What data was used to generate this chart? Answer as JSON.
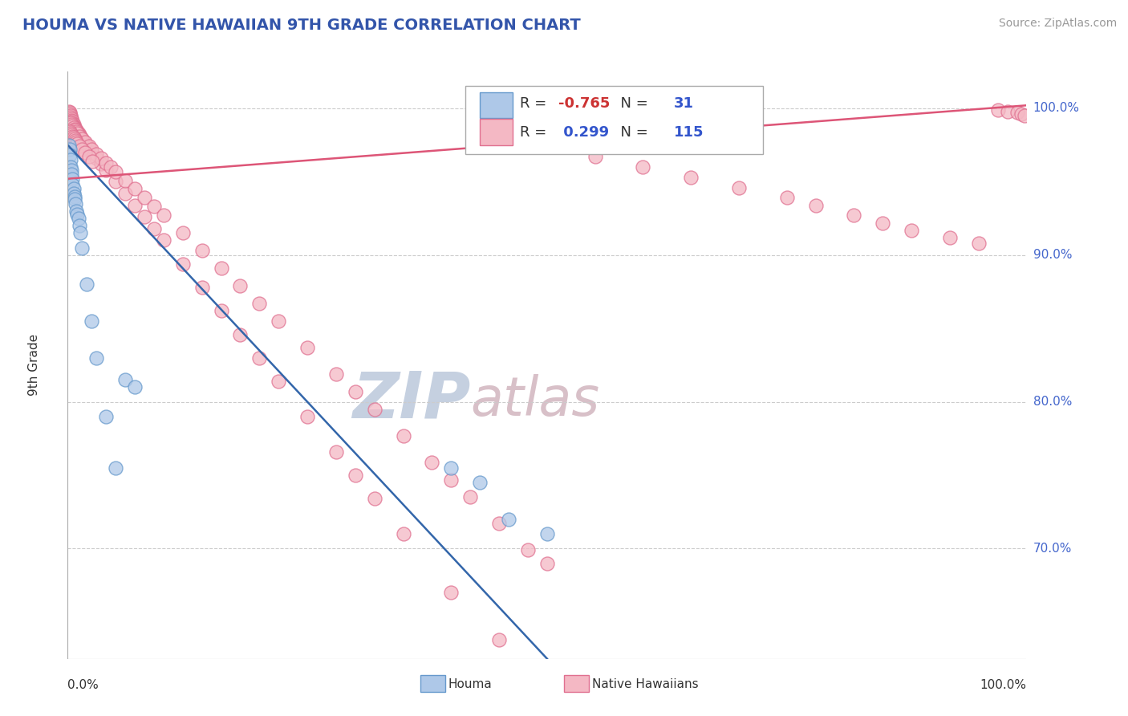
{
  "title": "HOUMA VS NATIVE HAWAIIAN 9TH GRADE CORRELATION CHART",
  "source": "Source: ZipAtlas.com",
  "ylabel": "9th Grade",
  "ylabel_right_ticks": [
    "70.0%",
    "80.0%",
    "90.0%",
    "100.0%"
  ],
  "ylabel_right_values": [
    0.7,
    0.8,
    0.9,
    1.0
  ],
  "xmin": 0.0,
  "xmax": 1.0,
  "ymin": 0.625,
  "ymax": 1.025,
  "houma_R": -0.765,
  "houma_N": 31,
  "native_R": 0.299,
  "native_N": 115,
  "houma_color": "#aec8e8",
  "houma_edge_color": "#6699cc",
  "native_color": "#f4b8c4",
  "native_edge_color": "#e07090",
  "houma_line_color": "#3366aa",
  "native_line_color": "#dd5577",
  "background_color": "#ffffff",
  "title_color": "#3355aa",
  "source_color": "#999999",
  "watermark_zip_color": "#c8d4e8",
  "watermark_atlas_color": "#d8c8c8",
  "grid_color": "#cccccc",
  "houma_x": [
    0.001,
    0.002,
    0.002,
    0.003,
    0.003,
    0.004,
    0.004,
    0.005,
    0.005,
    0.006,
    0.006,
    0.007,
    0.007,
    0.008,
    0.009,
    0.01,
    0.011,
    0.012,
    0.013,
    0.015,
    0.02,
    0.025,
    0.03,
    0.04,
    0.05,
    0.06,
    0.07,
    0.4,
    0.43,
    0.46,
    0.5
  ],
  "houma_y": [
    0.975,
    0.972,
    0.968,
    0.965,
    0.96,
    0.958,
    0.955,
    0.952,
    0.948,
    0.945,
    0.942,
    0.94,
    0.938,
    0.935,
    0.93,
    0.928,
    0.925,
    0.92,
    0.915,
    0.905,
    0.88,
    0.855,
    0.83,
    0.79,
    0.755,
    0.815,
    0.81,
    0.755,
    0.745,
    0.72,
    0.71
  ],
  "native_x": [
    0.001,
    0.002,
    0.002,
    0.003,
    0.003,
    0.004,
    0.004,
    0.005,
    0.005,
    0.006,
    0.006,
    0.007,
    0.008,
    0.009,
    0.01,
    0.011,
    0.012,
    0.013,
    0.015,
    0.017,
    0.02,
    0.022,
    0.025,
    0.03,
    0.035,
    0.04,
    0.05,
    0.06,
    0.07,
    0.08,
    0.09,
    0.1,
    0.12,
    0.14,
    0.16,
    0.18,
    0.2,
    0.22,
    0.25,
    0.28,
    0.3,
    0.32,
    0.35,
    0.4,
    0.45,
    0.003,
    0.004,
    0.005,
    0.006,
    0.007,
    0.008,
    0.009,
    0.01,
    0.012,
    0.015,
    0.018,
    0.022,
    0.025,
    0.03,
    0.035,
    0.04,
    0.045,
    0.05,
    0.06,
    0.07,
    0.08,
    0.09,
    0.1,
    0.12,
    0.14,
    0.16,
    0.18,
    0.2,
    0.22,
    0.25,
    0.28,
    0.3,
    0.32,
    0.35,
    0.38,
    0.4,
    0.42,
    0.45,
    0.48,
    0.5,
    0.55,
    0.6,
    0.65,
    0.7,
    0.75,
    0.78,
    0.82,
    0.85,
    0.88,
    0.92,
    0.95,
    0.97,
    0.98,
    0.99,
    0.995,
    0.998,
    0.002,
    0.003,
    0.004,
    0.005,
    0.006,
    0.007,
    0.008,
    0.009,
    0.01,
    0.012,
    0.015,
    0.018,
    0.022,
    0.026
  ],
  "native_y": [
    0.998,
    0.997,
    0.996,
    0.995,
    0.994,
    0.993,
    0.992,
    0.991,
    0.99,
    0.989,
    0.988,
    0.987,
    0.986,
    0.985,
    0.984,
    0.983,
    0.982,
    0.981,
    0.979,
    0.977,
    0.975,
    0.973,
    0.97,
    0.966,
    0.962,
    0.958,
    0.95,
    0.942,
    0.934,
    0.926,
    0.918,
    0.91,
    0.894,
    0.878,
    0.862,
    0.846,
    0.83,
    0.814,
    0.79,
    0.766,
    0.75,
    0.734,
    0.71,
    0.67,
    0.638,
    0.99,
    0.989,
    0.988,
    0.987,
    0.986,
    0.985,
    0.984,
    0.983,
    0.981,
    0.979,
    0.977,
    0.974,
    0.972,
    0.969,
    0.966,
    0.963,
    0.96,
    0.957,
    0.951,
    0.945,
    0.939,
    0.933,
    0.927,
    0.915,
    0.903,
    0.891,
    0.879,
    0.867,
    0.855,
    0.837,
    0.819,
    0.807,
    0.795,
    0.777,
    0.759,
    0.747,
    0.735,
    0.717,
    0.699,
    0.69,
    0.967,
    0.96,
    0.953,
    0.946,
    0.939,
    0.934,
    0.927,
    0.922,
    0.917,
    0.912,
    0.908,
    0.999,
    0.998,
    0.997,
    0.996,
    0.995,
    0.984,
    0.983,
    0.982,
    0.981,
    0.98,
    0.979,
    0.978,
    0.977,
    0.976,
    0.974,
    0.972,
    0.97,
    0.967,
    0.964
  ],
  "houma_line_x0": 0.0,
  "houma_line_y0": 0.975,
  "houma_line_x1": 0.5,
  "houma_line_y1": 0.625,
  "native_line_x0": 0.0,
  "native_line_y0": 0.952,
  "native_line_x1": 1.0,
  "native_line_y1": 1.002
}
